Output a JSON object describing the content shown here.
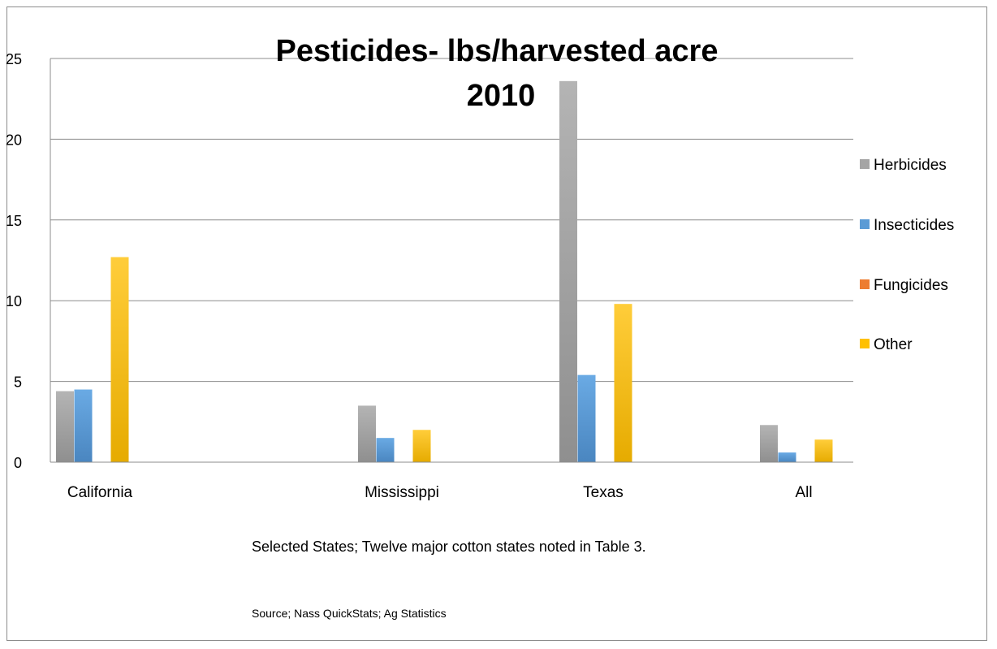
{
  "chart_data": {
    "type": "bar",
    "title": "Pesticides- lbs/harvested acre 2010",
    "title_lines": [
      "Pesticides- lbs/harvested acre",
      "2010"
    ],
    "categories": [
      "California",
      "Mississippi",
      "Texas",
      "All"
    ],
    "series": [
      {
        "name": "Herbicides",
        "color": "#a5a5a5",
        "values": [
          4.4,
          3.5,
          23.6,
          2.3
        ]
      },
      {
        "name": "Insecticides",
        "color": "#5b9bd5",
        "values": [
          4.5,
          1.5,
          5.4,
          0.6
        ]
      },
      {
        "name": "Fungicides",
        "color": "#ed7d31",
        "values": [
          0,
          0,
          0,
          0
        ]
      },
      {
        "name": "Other",
        "color": "#ffc000",
        "values": [
          12.7,
          2.0,
          9.8,
          1.4
        ]
      }
    ],
    "ylim": [
      0,
      25
    ],
    "yticks": [
      0,
      5,
      10,
      15,
      20,
      25
    ],
    "grid": true,
    "legend_position": "right"
  },
  "notes": {
    "main": "Selected States; Twelve major cotton states noted in Table 3.",
    "source": "Source; Nass QuickStats; Ag Statistics"
  }
}
